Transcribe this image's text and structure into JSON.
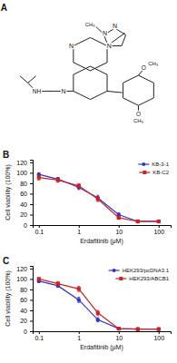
{
  "chart_data": [
    {
      "type": "structure",
      "title": "A",
      "annotations": [
        "N",
        "N",
        "N",
        "N",
        "CH₃",
        "N",
        "NH",
        "O",
        "CH₃",
        "O",
        "CH₃"
      ]
    },
    {
      "type": "line",
      "title": "B",
      "xlabel": "Erdafitinib (μM)",
      "ylabel": "Cell viability (100%)",
      "x": [
        0.1,
        0.3,
        1.0,
        3.0,
        10.0,
        30.0,
        100.0
      ],
      "xlim": [
        0.07,
        200
      ],
      "xticks": [
        0.1,
        1,
        10,
        100
      ],
      "ylim": [
        0,
        125
      ],
      "yticks": [
        0,
        20,
        40,
        60,
        80,
        100,
        120
      ],
      "log": "x",
      "legend": "upper right",
      "series": [
        {
          "name": "KB-3-1",
          "color": "#3333cc",
          "marker": "circle",
          "values": [
            97,
            88,
            72,
            52,
            20,
            7,
            7
          ],
          "errors": [
            3,
            3,
            4,
            5,
            3,
            2,
            2
          ]
        },
        {
          "name": "KB-C2",
          "color": "#cc2222",
          "marker": "square",
          "values": [
            91,
            86,
            75,
            50,
            14,
            7,
            7
          ],
          "errors": [
            5,
            4,
            4,
            5,
            3,
            2,
            2
          ]
        }
      ]
    },
    {
      "type": "line",
      "title": "C",
      "xlabel": "Erdafitinib (μM)",
      "ylabel": "Cell viability (100%)",
      "x": [
        0.1,
        0.3,
        1.0,
        3.0,
        10.0,
        30.0,
        100.0
      ],
      "xlim": [
        0.07,
        200
      ],
      "xticks": [
        0.1,
        1,
        10,
        100
      ],
      "ylim": [
        0,
        125
      ],
      "yticks": [
        0,
        20,
        40,
        60,
        80,
        100,
        120
      ],
      "log": "x",
      "legend": "upper right",
      "series": [
        {
          "name": "HEK293/pcDNA3.1",
          "color": "#3333cc",
          "marker": "circle",
          "values": [
            96,
            87,
            60,
            22,
            5,
            4,
            4
          ],
          "errors": [
            3,
            3,
            5,
            4,
            2,
            1,
            1
          ]
        },
        {
          "name": "HEK293/ABCB1",
          "color": "#cc2222",
          "marker": "square",
          "values": [
            100,
            91,
            81,
            35,
            5,
            4,
            4
          ],
          "errors": [
            2,
            4,
            5,
            5,
            2,
            1,
            1
          ]
        }
      ]
    }
  ]
}
